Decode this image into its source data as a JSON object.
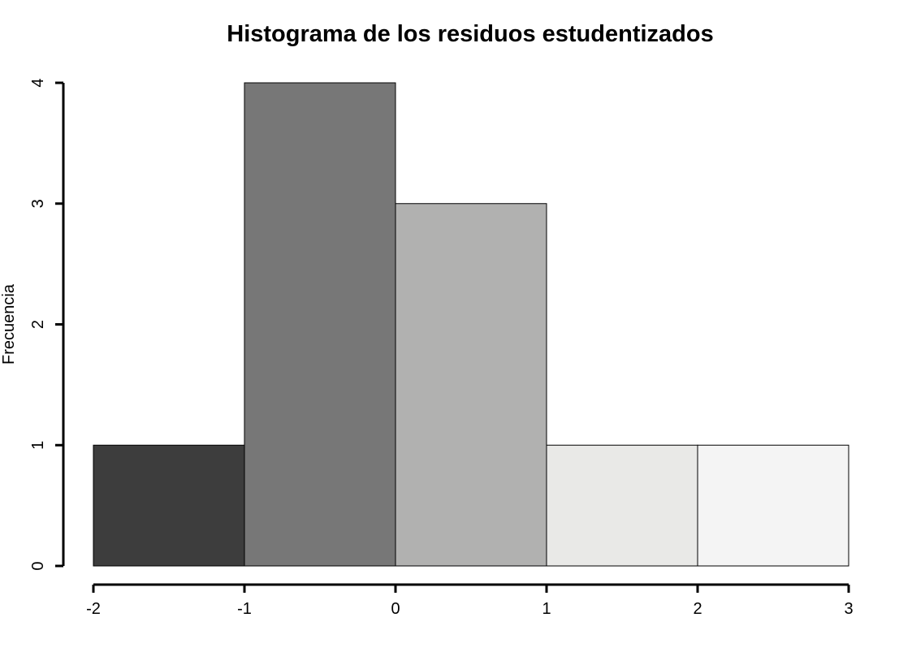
{
  "chart_data": {
    "type": "bar",
    "title": "Histograma de los residuos estudentizados",
    "xlabel": "",
    "ylabel": "Frecuencia",
    "bins": [
      {
        "from": -2,
        "to": -1,
        "count": 1,
        "color": "#3d3d3d"
      },
      {
        "from": -1,
        "to": 0,
        "count": 4,
        "color": "#777777"
      },
      {
        "from": 0,
        "to": 1,
        "count": 3,
        "color": "#b1b1b0"
      },
      {
        "from": 1,
        "to": 2,
        "count": 1,
        "color": "#e9e9e7"
      },
      {
        "from": 2,
        "to": 3,
        "count": 1,
        "color": "#f4f4f4"
      }
    ],
    "xlim": [
      -2,
      3
    ],
    "ylim": [
      0,
      4
    ],
    "x_ticks": [
      "-2",
      "-1",
      "0",
      "1",
      "2",
      "3"
    ],
    "y_ticks": [
      "0",
      "1",
      "2",
      "3",
      "4"
    ],
    "grid": false,
    "legend": "none"
  }
}
